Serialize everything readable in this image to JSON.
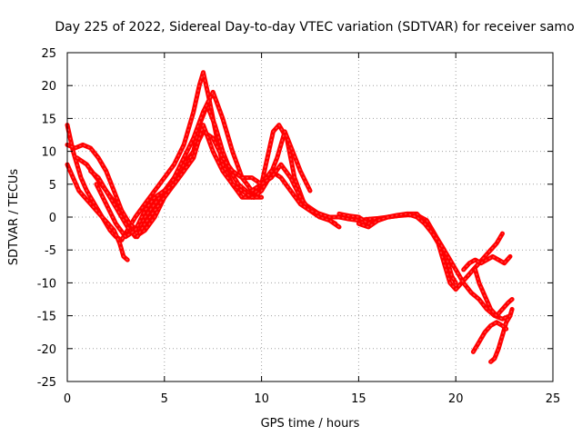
{
  "chart_data": {
    "type": "scatter",
    "title": "Day 225 of 2022, Sidereal Day-to-day VTEC variation (SDTVAR) for receiver samo",
    "xlabel": "GPS time / hours",
    "ylabel": "SDTVAR / TECUs",
    "xlim": [
      0,
      25
    ],
    "ylim": [
      -25,
      25
    ],
    "xticks": [
      "0",
      "5",
      "10",
      "15",
      "20",
      "25"
    ],
    "xtick_values": [
      0,
      5,
      10,
      15,
      20,
      25
    ],
    "yticks": [
      "25",
      "20",
      "15",
      "10",
      "5",
      "0",
      "-5",
      "-10",
      "-15",
      "-20",
      "-25"
    ],
    "ytick_values": [
      25,
      20,
      15,
      10,
      5,
      0,
      -5,
      -10,
      -15,
      -20,
      -25
    ],
    "grid": true,
    "marker": "plus",
    "color": "#ff0000",
    "series": [
      {
        "name": "trace-1",
        "x": [
          0,
          0.3,
          0.7,
          1.0,
          1.4,
          1.8,
          2.2,
          2.5,
          2.8,
          3.1,
          3.5,
          4.0,
          4.5,
          5.0,
          5.5,
          6.0,
          6.5,
          6.8,
          7.0,
          7.3,
          7.7,
          8.0,
          8.5,
          9.0,
          9.5,
          10.0,
          10.3,
          10.6,
          10.9,
          11.3,
          11.7,
          12.2,
          12.7,
          13.2,
          13.8
        ],
        "y": [
          14,
          10,
          6,
          4,
          2,
          0,
          -2,
          -3,
          -3.5,
          -2,
          0,
          2,
          4,
          6,
          8,
          11,
          16,
          20,
          22,
          18,
          12,
          8,
          5,
          3,
          3,
          5,
          9,
          13,
          14,
          12,
          6,
          2,
          1,
          0,
          -1
        ]
      },
      {
        "name": "trace-2",
        "x": [
          0,
          0.3,
          0.6,
          0.9,
          1.2,
          1.5,
          1.8,
          2.1,
          2.4,
          2.7,
          2.9,
          3.1
        ],
        "y": [
          8,
          6,
          4,
          3,
          2,
          1,
          0,
          -1,
          -2,
          -4,
          -6,
          -6.5
        ]
      },
      {
        "name": "trace-3",
        "x": [
          0,
          0.4,
          0.8,
          1.2,
          1.6,
          2.0,
          2.4,
          2.8,
          3.2,
          3.6,
          4.0,
          4.5,
          5.0,
          5.5,
          6.0,
          6.5,
          6.8,
          7.2,
          7.6,
          8.0,
          8.4,
          8.8,
          9.2,
          9.6,
          10.0,
          10.4,
          10.8,
          11.2,
          11.6,
          12.0,
          12.5
        ],
        "y": [
          11,
          10.5,
          11,
          10.5,
          9,
          7,
          4,
          1,
          -1,
          -2,
          0,
          2,
          4,
          6,
          8,
          10,
          14,
          17,
          14,
          10,
          7,
          5,
          4,
          3,
          4,
          6,
          9,
          13,
          10,
          7,
          4
        ]
      },
      {
        "name": "trace-4",
        "x": [
          0.5,
          1.0,
          1.5,
          2.0,
          2.5,
          3.0,
          3.5,
          4.0,
          4.5,
          5.0,
          5.5,
          6.0,
          6.5,
          7.0,
          7.5,
          8.0,
          8.5,
          9.0,
          9.5,
          10.0,
          10.5,
          11.0,
          11.5,
          12.0,
          12.5,
          13.0
        ],
        "y": [
          9,
          8,
          6,
          4,
          2,
          -1,
          -3,
          -2,
          0,
          3,
          6,
          9,
          12,
          16,
          19,
          15,
          10,
          6,
          4,
          5,
          7,
          6,
          4,
          2,
          1,
          0
        ]
      },
      {
        "name": "trace-5",
        "x": [
          1.2,
          1.6,
          2.0,
          2.4,
          2.8,
          3.2,
          3.6,
          4.0,
          4.5,
          5.0,
          5.5,
          6.0,
          6.5,
          7.0,
          7.5,
          8.0,
          8.5,
          9.0,
          9.5,
          10.0,
          10.5,
          11.0,
          11.5,
          12.0,
          12.5,
          13.0,
          13.5,
          14.0
        ],
        "y": [
          7,
          6,
          4,
          2,
          0,
          -2,
          -3,
          -1,
          1,
          3,
          5,
          7,
          10,
          13,
          12,
          9,
          7,
          6,
          6,
          5,
          6,
          8,
          6,
          3,
          1,
          0,
          -0.5,
          -1.5
        ]
      },
      {
        "name": "trace-6",
        "x": [
          1.5,
          2.0,
          2.5,
          3.0,
          3.5,
          4.0,
          4.5,
          5.0,
          5.5,
          6.0,
          6.5,
          7.0,
          7.5,
          8.0,
          8.5,
          9.0,
          9.5,
          10.0
        ],
        "y": [
          5,
          2,
          -1,
          -3,
          -2,
          1,
          3,
          4,
          5,
          7,
          9,
          14,
          10,
          7,
          5,
          4,
          3,
          3
        ]
      },
      {
        "name": "trace-7",
        "x": [
          12,
          12.5,
          13,
          13.5,
          14,
          14.5,
          15,
          15.5,
          16,
          16.5,
          17,
          17.5,
          18,
          18.5,
          18.8,
          19.0,
          19.2,
          19.4,
          19.6,
          19.8,
          20.0
        ],
        "y": [
          2,
          1,
          0.5,
          0,
          0,
          -0.3,
          -0.5,
          -0.3,
          -0.2,
          0,
          0.2,
          0.3,
          0.3,
          -0.5,
          -2,
          -3,
          -4,
          -5,
          -7,
          -9,
          -10
        ]
      },
      {
        "name": "trace-8",
        "x": [
          14,
          14.5,
          15,
          15.5,
          16,
          16.5,
          17,
          17.5,
          18,
          18.3,
          18.6,
          18.9,
          19.1,
          19.3,
          19.5,
          19.7,
          20.0,
          20.3,
          20.6,
          20.9,
          21.2,
          21.5,
          21.8,
          22.1,
          22.4
        ],
        "y": [
          0.5,
          0.2,
          0,
          -1,
          -0.5,
          0,
          0.2,
          0.5,
          0.5,
          -0.5,
          -1.5,
          -3,
          -4,
          -6,
          -8,
          -10,
          -11,
          -10,
          -9,
          -8,
          -7,
          -6,
          -5,
          -4,
          -2.5
        ]
      },
      {
        "name": "trace-9",
        "x": [
          15,
          15.5,
          16,
          16.5,
          17,
          17.5,
          18,
          18.4,
          18.8,
          19.2,
          19.6,
          20.0,
          20.4,
          20.8,
          21.2,
          21.6,
          22.0,
          22.4,
          22.8
        ],
        "y": [
          -1,
          -1.5,
          -0.5,
          0,
          0.3,
          0.5,
          0,
          -1,
          -2.5,
          -4,
          -6,
          -8,
          -10,
          -11.5,
          -12.5,
          -14,
          -15,
          -15.5,
          -15
        ]
      },
      {
        "name": "trace-10",
        "x": [
          20.4,
          20.7,
          21.0,
          21.3,
          21.6,
          21.9,
          22.2,
          22.5,
          22.8
        ],
        "y": [
          -8,
          -7,
          -6.5,
          -7,
          -6.5,
          -6,
          -6.5,
          -7,
          -6
        ]
      },
      {
        "name": "trace-11",
        "x": [
          21.0,
          21.2,
          21.5,
          21.8,
          22.1,
          22.4,
          22.7,
          22.9
        ],
        "y": [
          -8,
          -10,
          -12,
          -14,
          -15,
          -14,
          -13,
          -12.5
        ]
      },
      {
        "name": "trace-12",
        "x": [
          21.8,
          22.0,
          22.2,
          22.4,
          22.6,
          22.8,
          22.9
        ],
        "y": [
          -22,
          -21.5,
          -20,
          -18,
          -16,
          -15,
          -14
        ]
      },
      {
        "name": "trace-13",
        "x": [
          20.9,
          21.2,
          21.5,
          21.8,
          22.1,
          22.4,
          22.6
        ],
        "y": [
          -20.5,
          -19,
          -17.5,
          -16.5,
          -16,
          -16.5,
          -17
        ]
      }
    ]
  }
}
